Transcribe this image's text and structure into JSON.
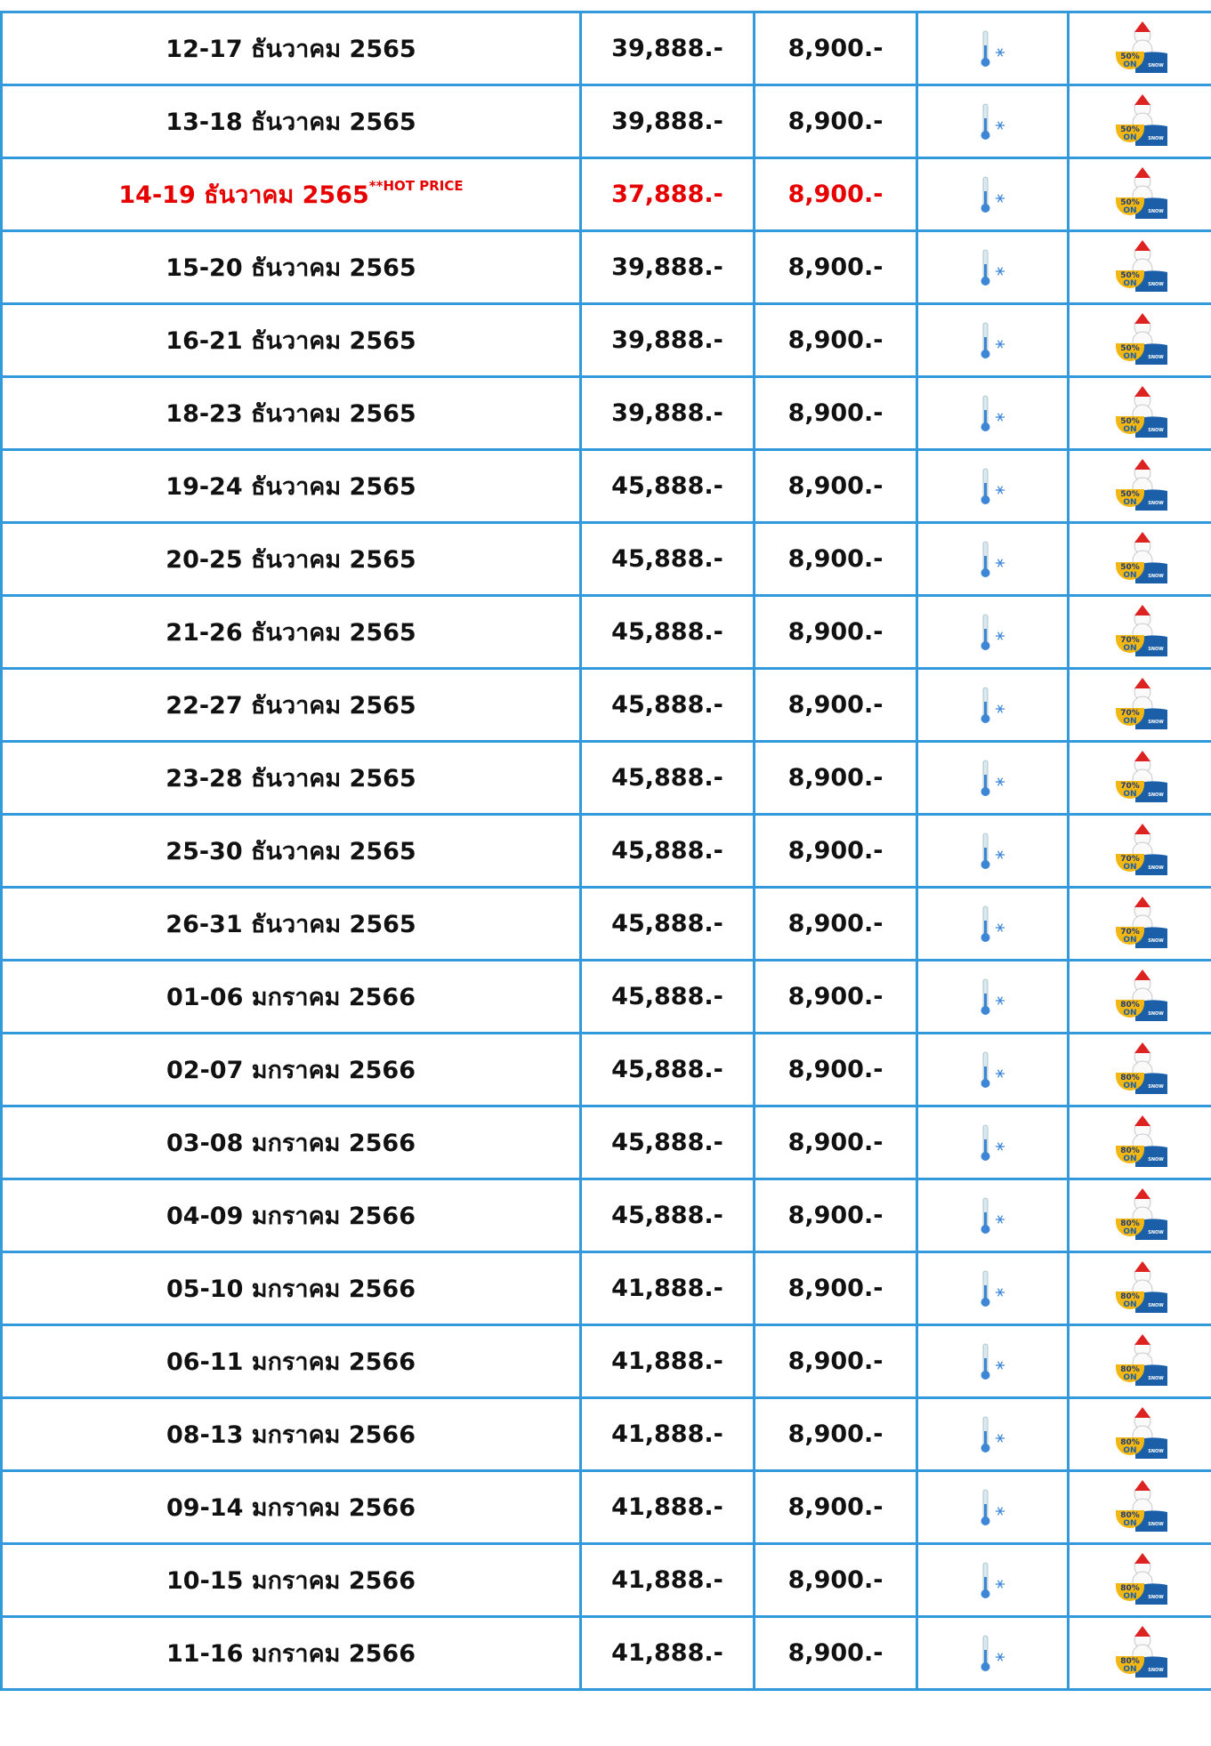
{
  "table": {
    "highlight_color": "#e60000",
    "badge_on": "ON",
    "badge_snow": "SNOW",
    "rows": [
      {
        "date": "12-17 ธันวาคม 2565",
        "price": "39,888.-",
        "single": "8,900.-",
        "badge": "50%"
      },
      {
        "date": "13-18 ธันวาคม 2565",
        "price": "39,888.-",
        "single": "8,900.-",
        "badge": "50%"
      },
      {
        "date": "14-19 ธันวาคม 2565",
        "note": "**HOT PRICE",
        "highlight": true,
        "price": "37,888.-",
        "single": "8,900.-",
        "badge": "50%"
      },
      {
        "date": "15-20 ธันวาคม 2565",
        "price": "39,888.-",
        "single": "8,900.-",
        "badge": "50%"
      },
      {
        "date": "16-21 ธันวาคม 2565",
        "price": "39,888.-",
        "single": "8,900.-",
        "badge": "50%"
      },
      {
        "date": "18-23 ธันวาคม 2565",
        "price": "39,888.-",
        "single": "8,900.-",
        "badge": "50%"
      },
      {
        "date": "19-24 ธันวาคม 2565",
        "price": "45,888.-",
        "single": "8,900.-",
        "badge": "50%"
      },
      {
        "date": "20-25 ธันวาคม 2565",
        "price": "45,888.-",
        "single": "8,900.-",
        "badge": "50%"
      },
      {
        "date": "21-26 ธันวาคม 2565",
        "price": "45,888.-",
        "single": "8,900.-",
        "badge": "70%"
      },
      {
        "date": "22-27 ธันวาคม 2565",
        "price": "45,888.-",
        "single": "8,900.-",
        "badge": "70%"
      },
      {
        "date": "23-28 ธันวาคม 2565",
        "price": "45,888.-",
        "single": "8,900.-",
        "badge": "70%"
      },
      {
        "date": "25-30 ธันวาคม 2565",
        "price": "45,888.-",
        "single": "8,900.-",
        "badge": "70%"
      },
      {
        "date": "26-31 ธันวาคม 2565",
        "price": "45,888.-",
        "single": "8,900.-",
        "badge": "70%"
      },
      {
        "date": "01-06 มกราคม 2566",
        "price": "45,888.-",
        "single": "8,900.-",
        "badge": "80%"
      },
      {
        "date": "02-07 มกราคม 2566",
        "price": "45,888.-",
        "single": "8,900.-",
        "badge": "80%"
      },
      {
        "date": "03-08 มกราคม 2566",
        "price": "45,888.-",
        "single": "8,900.-",
        "badge": "80%"
      },
      {
        "date": "04-09 มกราคม 2566",
        "price": "45,888.-",
        "single": "8,900.-",
        "badge": "80%"
      },
      {
        "date": "05-10 มกราคม 2566",
        "price": "41,888.-",
        "single": "8,900.-",
        "badge": "80%"
      },
      {
        "date": "06-11 มกราคม 2566",
        "price": "41,888.-",
        "single": "8,900.-",
        "badge": "80%"
      },
      {
        "date": "08-13 มกราคม 2566",
        "price": "41,888.-",
        "single": "8,900.-",
        "badge": "80%"
      },
      {
        "date": "09-14 มกราคม 2566",
        "price": "41,888.-",
        "single": "8,900.-",
        "badge": "80%"
      },
      {
        "date": "10-15 มกราคม 2566",
        "price": "41,888.-",
        "single": "8,900.-",
        "badge": "80%"
      },
      {
        "date": "11-16 มกราคม 2566",
        "price": "41,888.-",
        "single": "8,900.-",
        "badge": "80%"
      }
    ]
  }
}
